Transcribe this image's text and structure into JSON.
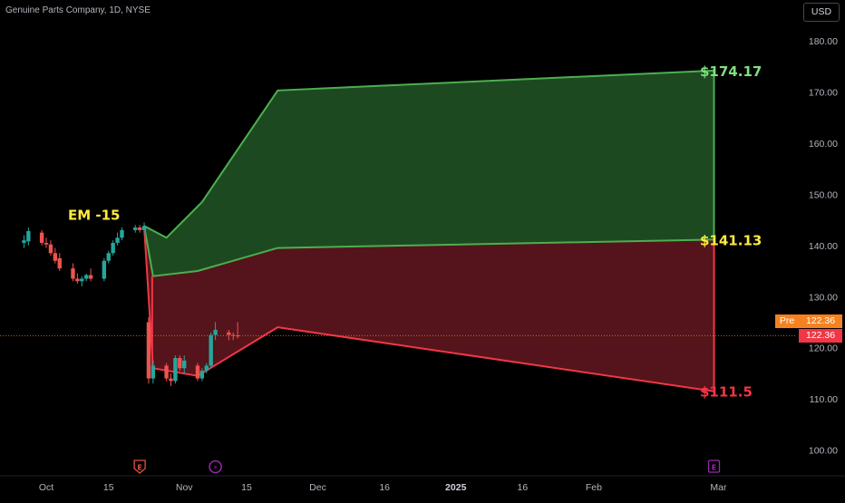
{
  "header": {
    "symbol_title": "Genuine Parts Company, 1D, NYSE",
    "currency_button": "USD"
  },
  "price_axis": {
    "ticks": [
      "180.00",
      "170.00",
      "160.00",
      "150.00",
      "140.00",
      "130.00",
      "120.00",
      "110.00",
      "100.00"
    ],
    "pre_label": "Pre",
    "pre_price": "122.36",
    "last_price": "122.36"
  },
  "time_axis": {
    "ticks": [
      "Oct",
      "15",
      "Nov",
      "15",
      "Dec",
      "16",
      "2025",
      "16",
      "Feb",
      "Mar"
    ]
  },
  "annotations": {
    "em_label": "EM -15",
    "upper_target": "$174.17",
    "mid_target": "$141.13",
    "lower_target": "$111.5"
  },
  "event_markers": [
    {
      "type": "earnings",
      "glyph": "E"
    },
    {
      "type": "dividend",
      "glyph": "⚡"
    },
    {
      "type": "earnings-upcoming",
      "glyph": "E"
    }
  ],
  "colors": {
    "background": "#000000",
    "up_candle": "#26a69a",
    "down_candle": "#ef5350",
    "green_zone_fill": "#1f4d23",
    "green_zone_stroke": "#4caf50",
    "red_zone_fill": "#5a151c",
    "red_zone_stroke": "#f23645",
    "green_text": "#7fe07f",
    "yellow_text": "#ffeb3b",
    "red_text": "#f23645",
    "pre_badge": "#f5821f"
  },
  "chart_data": {
    "type": "candlestick",
    "title": "Genuine Parts Company, 1D, NYSE",
    "y_range": [
      95,
      185
    ],
    "x_range": [
      "2024-09-25",
      "2025-03-05"
    ],
    "current_price": 122.36,
    "candles": [
      {
        "date": "2024-09-26",
        "o": 140.5,
        "h": 142.0,
        "l": 139.5,
        "c": 141.0
      },
      {
        "date": "2024-09-27",
        "o": 140.8,
        "h": 143.5,
        "l": 140.0,
        "c": 142.8
      },
      {
        "date": "2024-09-30",
        "o": 142.5,
        "h": 143.0,
        "l": 140.0,
        "c": 140.5
      },
      {
        "date": "2024-10-01",
        "o": 140.5,
        "h": 141.5,
        "l": 139.5,
        "c": 140.2
      },
      {
        "date": "2024-10-02",
        "o": 140.2,
        "h": 141.0,
        "l": 138.0,
        "c": 138.5
      },
      {
        "date": "2024-10-03",
        "o": 138.5,
        "h": 139.5,
        "l": 136.5,
        "c": 137.0
      },
      {
        "date": "2024-10-04",
        "o": 137.5,
        "h": 138.5,
        "l": 135.0,
        "c": 135.5
      },
      {
        "date": "2024-10-07",
        "o": 135.5,
        "h": 136.5,
        "l": 133.0,
        "c": 133.5
      },
      {
        "date": "2024-10-08",
        "o": 133.5,
        "h": 134.5,
        "l": 132.5,
        "c": 133.0
      },
      {
        "date": "2024-10-09",
        "o": 133.0,
        "h": 134.0,
        "l": 132.0,
        "c": 133.5
      },
      {
        "date": "2024-10-10",
        "o": 133.5,
        "h": 134.5,
        "l": 133.0,
        "c": 134.2
      },
      {
        "date": "2024-10-11",
        "o": 134.2,
        "h": 135.5,
        "l": 133.0,
        "c": 133.5
      },
      {
        "date": "2024-10-14",
        "o": 133.5,
        "h": 137.5,
        "l": 133.0,
        "c": 137.0
      },
      {
        "date": "2024-10-15",
        "o": 137.0,
        "h": 139.0,
        "l": 136.5,
        "c": 138.5
      },
      {
        "date": "2024-10-16",
        "o": 138.5,
        "h": 141.0,
        "l": 138.0,
        "c": 140.5
      },
      {
        "date": "2024-10-17",
        "o": 140.5,
        "h": 142.5,
        "l": 140.0,
        "c": 141.5
      },
      {
        "date": "2024-10-18",
        "o": 141.5,
        "h": 143.5,
        "l": 141.0,
        "c": 143.0
      },
      {
        "date": "2024-10-21",
        "o": 143.0,
        "h": 144.0,
        "l": 142.5,
        "c": 143.5
      },
      {
        "date": "2024-10-22",
        "o": 143.5,
        "h": 144.0,
        "l": 142.5,
        "c": 143.0
      },
      {
        "date": "2024-10-23",
        "o": 143.0,
        "h": 144.5,
        "l": 142.0,
        "c": 143.8
      },
      {
        "date": "2024-10-24",
        "o": 125.0,
        "h": 126.0,
        "l": 113.0,
        "c": 114.0
      },
      {
        "date": "2024-10-25",
        "o": 114.0,
        "h": 117.5,
        "l": 113.0,
        "c": 116.5
      },
      {
        "date": "2024-10-28",
        "o": 116.5,
        "h": 117.0,
        "l": 113.5,
        "c": 114.0
      },
      {
        "date": "2024-10-29",
        "o": 114.0,
        "h": 115.0,
        "l": 112.5,
        "c": 113.5
      },
      {
        "date": "2024-10-30",
        "o": 113.5,
        "h": 118.5,
        "l": 113.0,
        "c": 118.0
      },
      {
        "date": "2024-10-31",
        "o": 118.0,
        "h": 118.5,
        "l": 115.5,
        "c": 116.0
      },
      {
        "date": "2024-11-01",
        "o": 116.0,
        "h": 118.5,
        "l": 115.0,
        "c": 117.5
      },
      {
        "date": "2024-11-04",
        "o": 116.5,
        "h": 117.0,
        "l": 113.5,
        "c": 114.0
      },
      {
        "date": "2024-11-05",
        "o": 114.0,
        "h": 116.0,
        "l": 113.5,
        "c": 115.5
      },
      {
        "date": "2024-11-06",
        "o": 115.5,
        "h": 117.0,
        "l": 115.0,
        "c": 116.5
      },
      {
        "date": "2024-11-07",
        "o": 116.5,
        "h": 123.0,
        "l": 116.0,
        "c": 122.5
      },
      {
        "date": "2024-11-08",
        "o": 122.5,
        "h": 125.0,
        "l": 121.5,
        "c": 123.5
      },
      {
        "date": "2024-11-11",
        "o": 123.0,
        "h": 123.5,
        "l": 121.5,
        "c": 122.5
      },
      {
        "date": "2024-11-12",
        "o": 122.5,
        "h": 123.0,
        "l": 121.5,
        "c": 122.4
      },
      {
        "date": "2024-11-13",
        "o": 122.4,
        "h": 125.0,
        "l": 121.8,
        "c": 122.36
      }
    ],
    "upper_band": [
      {
        "date": "2024-10-23",
        "value": 143.8
      },
      {
        "date": "2024-10-28",
        "value": 141.5
      },
      {
        "date": "2024-11-05",
        "value": 148.5
      },
      {
        "date": "2024-11-22",
        "value": 170.3
      },
      {
        "date": "2025-02-28",
        "value": 174.17
      }
    ],
    "mid_band": [
      {
        "date": "2024-10-23",
        "value": 143.8
      },
      {
        "date": "2024-10-25",
        "value": 134.0
      },
      {
        "date": "2024-11-04",
        "value": 135.0
      },
      {
        "date": "2024-11-22",
        "value": 139.5
      },
      {
        "date": "2025-02-28",
        "value": 141.13
      }
    ],
    "lower_band": [
      {
        "date": "2024-10-23",
        "value": 143.8
      },
      {
        "date": "2024-10-25",
        "value": 116.0
      },
      {
        "date": "2024-11-04",
        "value": 114.5
      },
      {
        "date": "2024-11-22",
        "value": 124.0
      },
      {
        "date": "2025-02-28",
        "value": 111.5
      }
    ],
    "annotations": [
      {
        "text": "EM -15",
        "date": "2024-10-23",
        "value": 144.5
      },
      {
        "text": "$174.17",
        "date": "2025-02-28",
        "value": 174.17
      },
      {
        "text": "$141.13",
        "date": "2025-02-28",
        "value": 141.13
      },
      {
        "text": "$111.5",
        "date": "2025-02-28",
        "value": 111.5
      }
    ],
    "events": [
      {
        "type": "earnings",
        "date": "2024-10-22"
      },
      {
        "type": "dividend",
        "date": "2024-11-08"
      },
      {
        "type": "earnings",
        "date": "2025-02-28"
      }
    ],
    "y_ticks": [
      180,
      170,
      160,
      150,
      140,
      130,
      120,
      110,
      100
    ],
    "x_ticks": [
      {
        "date": "2024-10-01",
        "label": "Oct"
      },
      {
        "date": "2024-10-15",
        "label": "15"
      },
      {
        "date": "2024-11-01",
        "label": "Nov"
      },
      {
        "date": "2024-11-15",
        "label": "15"
      },
      {
        "date": "2024-12-01",
        "label": "Dec"
      },
      {
        "date": "2024-12-16",
        "label": "16"
      },
      {
        "date": "2025-01-01",
        "label": "2025"
      },
      {
        "date": "2025-01-16",
        "label": "16"
      },
      {
        "date": "2025-02-01",
        "label": "Feb"
      },
      {
        "date": "2025-03-01",
        "label": "Mar"
      }
    ],
    "grid": false
  }
}
